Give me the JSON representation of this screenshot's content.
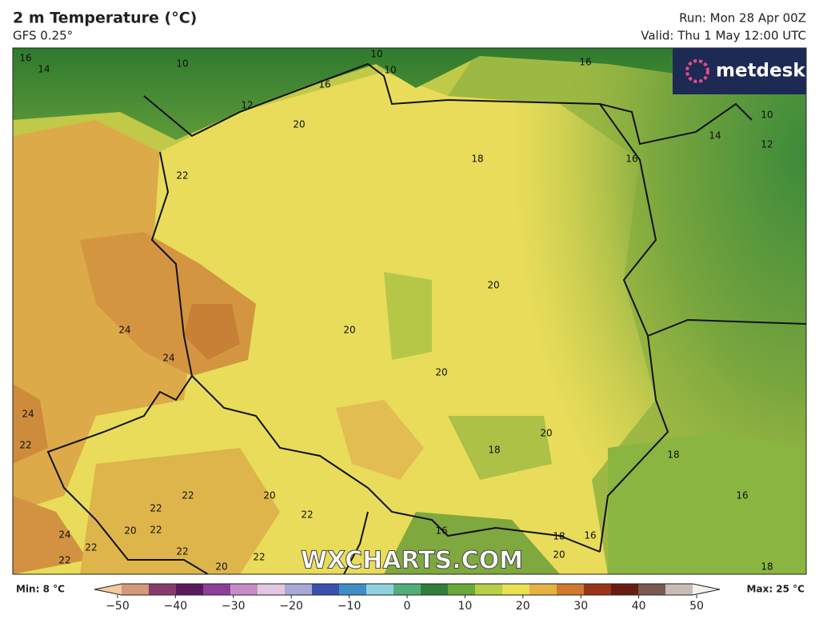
{
  "header": {
    "title": "2 m Temperature (°C)",
    "subtitle": "GFS 0.25°",
    "run": "Run: Mon 28 Apr 00Z",
    "valid": "Valid: Thu 1 May 12:00 UTC"
  },
  "logo": "metdesk",
  "watermark": "WXCHARTS.COM",
  "map": {
    "contour_labels": [
      16,
      14,
      10,
      10,
      10,
      16,
      12,
      16,
      20,
      10,
      14,
      12,
      18,
      16,
      22,
      20,
      24,
      20,
      24,
      20,
      24,
      20,
      22,
      18,
      18,
      20,
      22,
      16,
      22,
      22,
      20,
      22,
      16,
      24,
      18,
      16,
      22,
      22,
      22,
      20,
      22,
      18,
      20
    ]
  },
  "colorbar": {
    "min_label": "Min: 8 °C",
    "max_label": "Max: 25 °C",
    "xlim": [
      -54,
      54
    ],
    "ticks": [
      {
        "value": -50,
        "label": "−50"
      },
      {
        "value": -40,
        "label": "−40"
      },
      {
        "value": -30,
        "label": "−30"
      },
      {
        "value": -20,
        "label": "−20"
      },
      {
        "value": -10,
        "label": "−10"
      },
      0,
      10,
      20,
      30,
      40,
      50
    ],
    "colors": [
      "#f3c9a0",
      "#d39a7a",
      "#8a3b6e",
      "#5a1a5e",
      "#8e3f9a",
      "#c98cc8",
      "#e3c7e0",
      "#a7a9d8",
      "#3a4fae",
      "#3e8ec9",
      "#8fd3de",
      "#4fae7a",
      "#2f7f3c",
      "#6aa83a",
      "#b9cf45",
      "#e9e052",
      "#e6b343",
      "#cf7a2e",
      "#9a3418",
      "#6a1c12",
      "#7a5a50",
      "#c8bdb6",
      "#f4f0ee"
    ]
  }
}
